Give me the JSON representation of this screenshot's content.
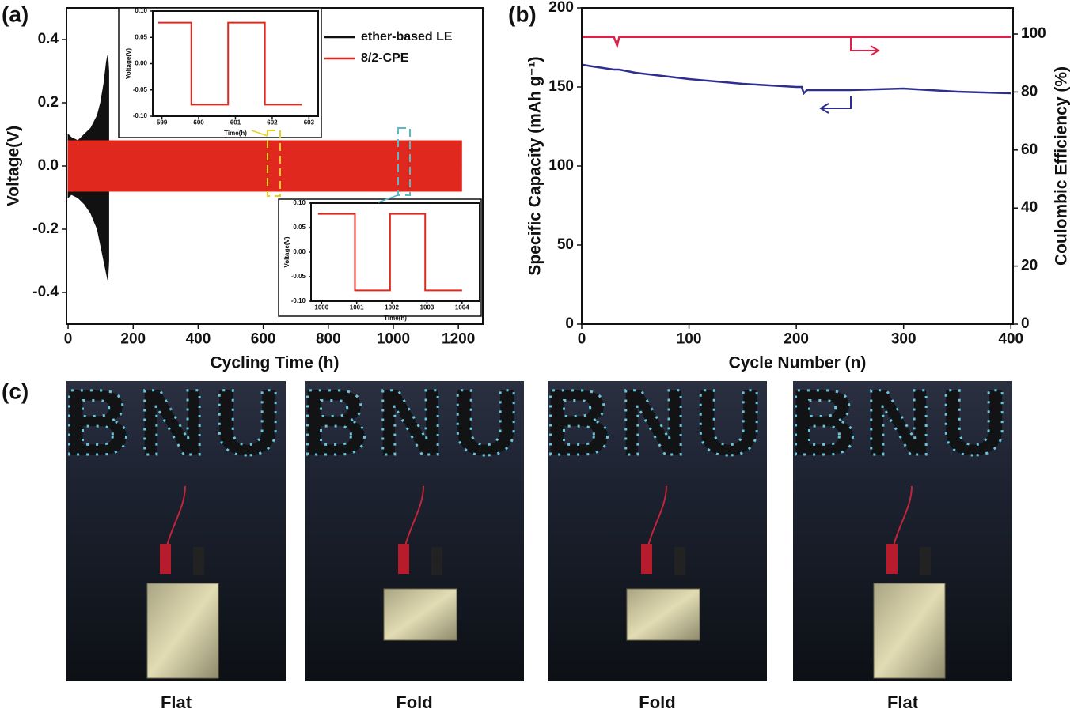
{
  "chart_data": [
    {
      "type": "band",
      "panel_label": "(a)",
      "xlabel": "Cycling Time (h)",
      "ylabel": "Voltage(V)",
      "legend": "upper right",
      "xlim": [
        -5,
        1275
      ],
      "ylim": [
        -0.5,
        0.5
      ],
      "xticks": [
        0,
        200,
        400,
        600,
        800,
        1000,
        1200
      ],
      "yticks": [
        -0.4,
        -0.2,
        {
          "value": 0,
          "label": "0.0"
        },
        0.2,
        0.4
      ],
      "series": [
        {
          "name": "ether-based LE",
          "color": "#111111",
          "x": [
            0,
            10,
            30,
            50,
            70,
            90,
            100,
            110,
            118,
            122,
            125
          ],
          "upper": [
            0.1,
            0.09,
            0.08,
            0.1,
            0.12,
            0.16,
            0.2,
            0.26,
            0.33,
            0.35,
            0.3
          ],
          "lower": [
            -0.1,
            -0.09,
            -0.1,
            -0.12,
            -0.15,
            -0.2,
            -0.25,
            -0.3,
            -0.34,
            -0.36,
            -0.3
          ]
        },
        {
          "name": "8/2-CPE",
          "color": "#e0281e",
          "x": [
            0,
            1210
          ],
          "upper": [
            0.08,
            0.08
          ],
          "lower": [
            -0.08,
            -0.08
          ]
        }
      ]
    },
    {
      "type": "line",
      "xlabel": "Time(h)",
      "ylabel": "Voltage(V)",
      "xlim": [
        598.75,
        603.25
      ],
      "ylim": [
        -0.1,
        0.1
      ],
      "xticks": [
        599,
        600,
        601,
        602,
        603
      ],
      "yticks": [
        {
          "value": -0.1,
          "label": "-0.10"
        },
        {
          "value": -0.05,
          "label": "-0.05"
        },
        {
          "value": 0,
          "label": "0.00"
        },
        {
          "value": 0.05,
          "label": "0.05"
        },
        {
          "value": 0.1,
          "label": "0.10"
        }
      ],
      "x": [
        598.9,
        599.8,
        599.8,
        600.8,
        600.8,
        601.8,
        601.8,
        602.8
      ],
      "series": [
        {
          "color": "#e0281e",
          "values": [
            0.078,
            0.078,
            -0.078,
            -0.078,
            0.078,
            0.078,
            -0.078,
            -0.078
          ]
        }
      ]
    },
    {
      "type": "line",
      "xlabel": "Time(h)",
      "ylabel": "Voltage(V)",
      "xlim": [
        999.7,
        1004.5
      ],
      "ylim": [
        -0.1,
        0.1
      ],
      "xticks": [
        1000,
        1001,
        1002,
        1003,
        1004
      ],
      "yticks": [
        {
          "value": -0.1,
          "label": "-0.10"
        },
        {
          "value": -0.05,
          "label": "-0.05"
        },
        {
          "value": 0,
          "label": "0.00"
        },
        {
          "value": 0.05,
          "label": "0.05"
        },
        {
          "value": 0.1,
          "label": "0.10"
        }
      ],
      "x": [
        999.9,
        1000.95,
        1000.95,
        1001.95,
        1001.95,
        1002.95,
        1002.95,
        1004.0
      ],
      "series": [
        {
          "color": "#e0281e",
          "values": [
            0.078,
            0.078,
            -0.078,
            -0.078,
            0.078,
            0.078,
            -0.078,
            -0.078
          ]
        }
      ]
    },
    {
      "type": "line",
      "panel_label": "(b)",
      "xlabel": "Cycle Number (n)",
      "ylabel": "Specific Capacity (mAh g⁻¹)",
      "y2label": "Coulombic Efficiency (%)",
      "xlim": [
        0,
        402
      ],
      "ylim": [
        0,
        200
      ],
      "y2lim": [
        0,
        109
      ],
      "xticks": [
        0,
        100,
        200,
        300,
        400
      ],
      "yticks": [
        0,
        50,
        100,
        150,
        200
      ],
      "y2ticks": [
        0,
        20,
        40,
        60,
        80,
        100
      ],
      "x": [
        1,
        10,
        30,
        33,
        35,
        50,
        100,
        150,
        200,
        205,
        207,
        210,
        250,
        300,
        350,
        400
      ],
      "series": [
        {
          "color": "#2e2e8f",
          "values": [
            164,
            163,
            161,
            161,
            161,
            159,
            155,
            152,
            150,
            150,
            146,
            148,
            148,
            149,
            147,
            146
          ]
        },
        {
          "color": "#e0204a",
          "axis": "y2",
          "values": [
            99,
            99,
            99,
            96,
            99,
            99,
            99,
            99,
            99,
            99,
            99,
            99,
            99,
            99,
            99,
            99
          ]
        }
      ]
    }
  ],
  "photos": {
    "panel_label": "(c)",
    "items": [
      {
        "sign": "BNU",
        "caption": "Flat"
      },
      {
        "sign": "BNU",
        "caption": "Fold"
      },
      {
        "sign": "BNU",
        "caption": "Fold"
      },
      {
        "sign": "BNU",
        "caption": "Flat"
      }
    ]
  }
}
